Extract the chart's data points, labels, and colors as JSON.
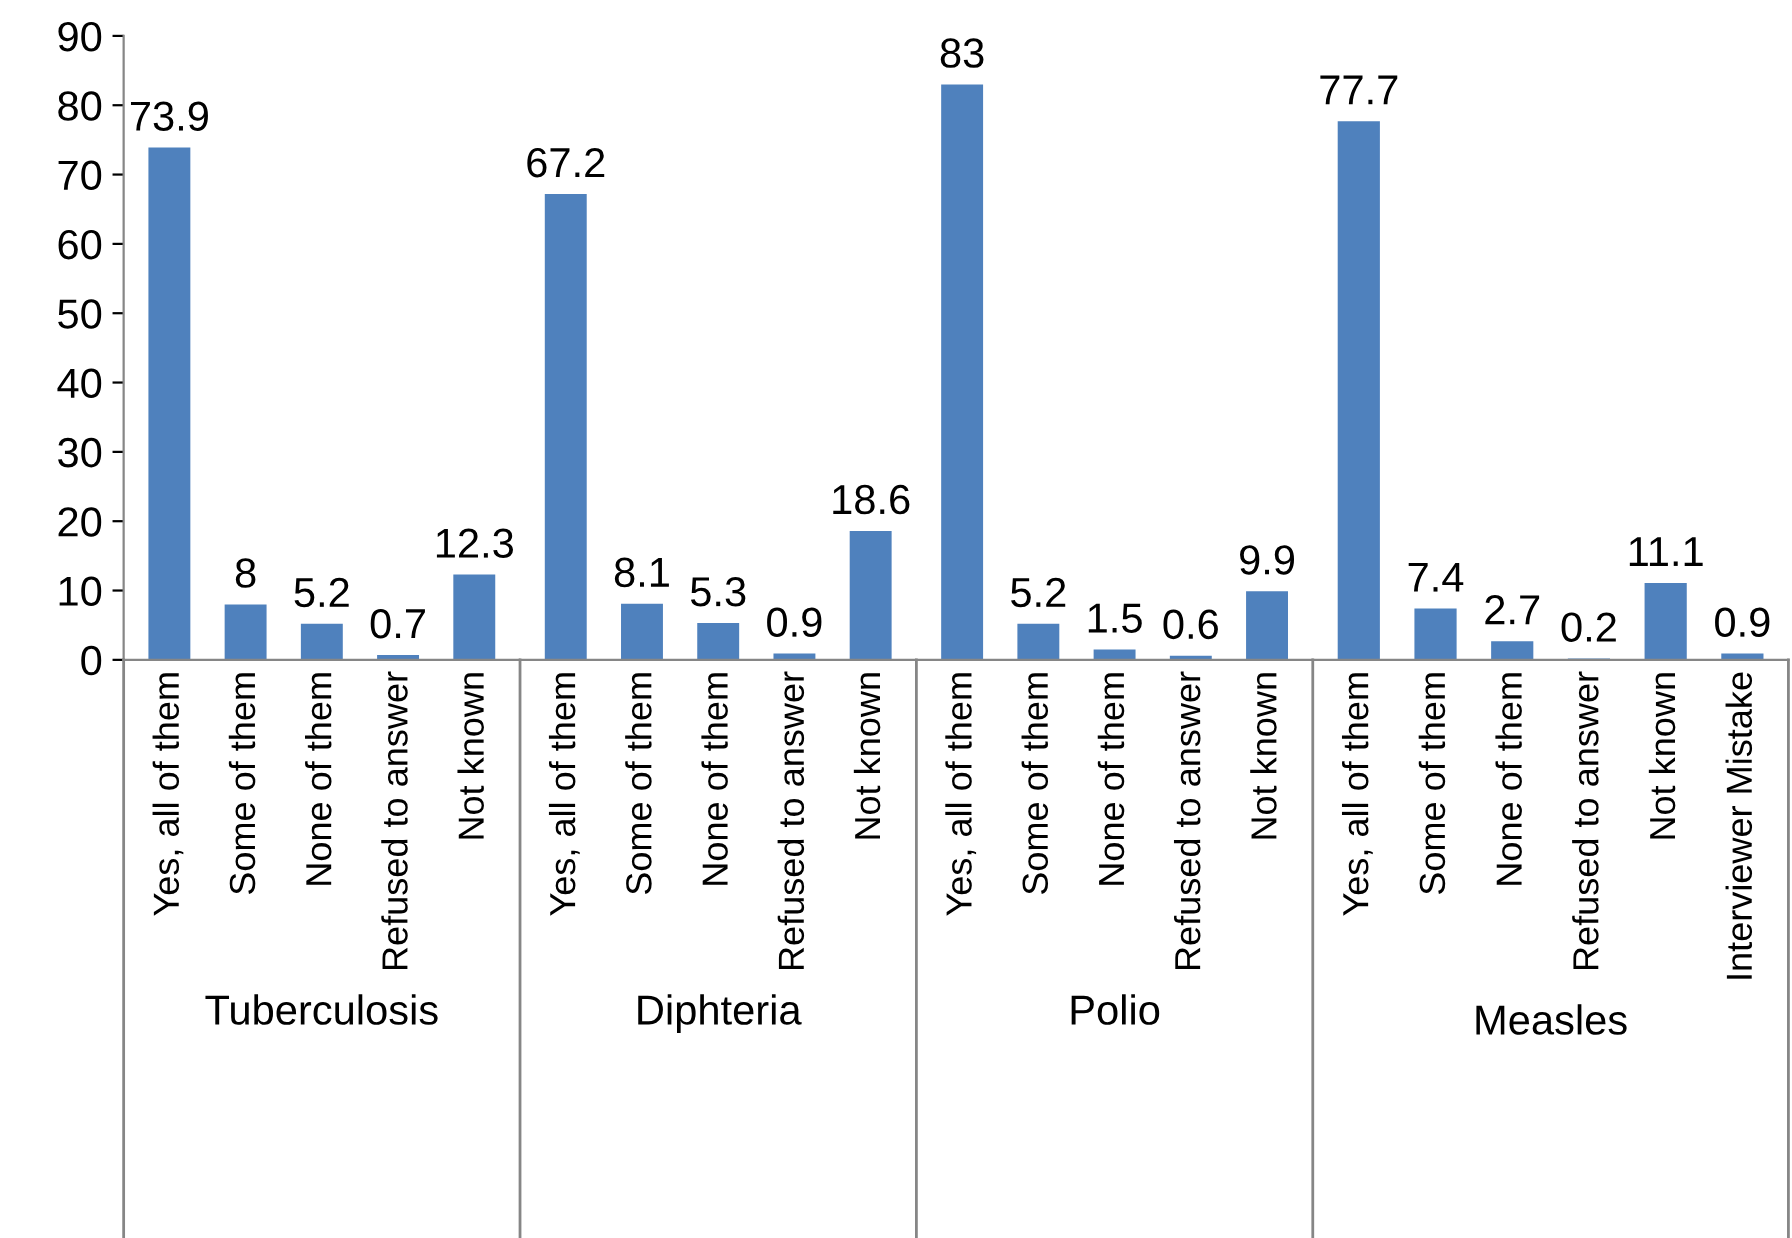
{
  "chart_data": [
    {
      "type": "bar",
      "xlabel": "Tuberculosis",
      "categories": [
        "Yes, all of them",
        "Some of them",
        "None of them",
        "Refused to answer",
        "Not known"
      ],
      "values": [
        73.9,
        8,
        5.2,
        0.7,
        12.3
      ],
      "color": "#4f81bd",
      "ylim": [
        0,
        90
      ],
      "yticks": [
        0,
        10,
        20,
        30,
        40,
        50,
        60,
        70,
        80,
        90
      ],
      "data_labels": true,
      "grid": false,
      "legend": false
    },
    {
      "type": "bar",
      "xlabel": "Diphteria",
      "categories": [
        "Yes, all of them",
        "Some of them",
        "None of them",
        "Refused to answer",
        "Not known"
      ],
      "values": [
        67.2,
        8.1,
        5.3,
        0.9,
        18.6
      ],
      "color": "#4f81bd",
      "ylim": [
        0,
        90
      ],
      "yticks": [
        0,
        10,
        20,
        30,
        40,
        50,
        60,
        70,
        80,
        90
      ],
      "tick_labels": "x",
      "data_labels": true,
      "grid": false,
      "legend": false
    },
    {
      "type": "bar",
      "xlabel": "Polio",
      "categories": [
        "Yes, all of them",
        "Some of them",
        "None of them",
        "Refused to answer",
        "Not known"
      ],
      "values": [
        83,
        5.2,
        1.5,
        0.6,
        9.9
      ],
      "color": "#4f81bd",
      "ylim": [
        0,
        90
      ],
      "yticks": [
        0,
        10,
        20,
        30,
        40,
        50,
        60,
        70,
        80,
        90
      ],
      "tick_labels": "x",
      "data_labels": true,
      "grid": false,
      "legend": false
    },
    {
      "type": "bar",
      "xlabel": "Measles",
      "categories": [
        "Yes, all of them",
        "Some of them",
        "None of them",
        "Refused to answer",
        "Not known",
        "Interviewer Mistake"
      ],
      "values": [
        77.7,
        7.4,
        2.7,
        0.2,
        11.1,
        0.9
      ],
      "color": "#4f81bd",
      "ylim": [
        0,
        90
      ],
      "yticks": [
        0,
        10,
        20,
        30,
        40,
        50,
        60,
        70,
        80,
        90
      ],
      "tick_labels": "x",
      "data_labels": true,
      "grid": false,
      "legend": false
    }
  ]
}
